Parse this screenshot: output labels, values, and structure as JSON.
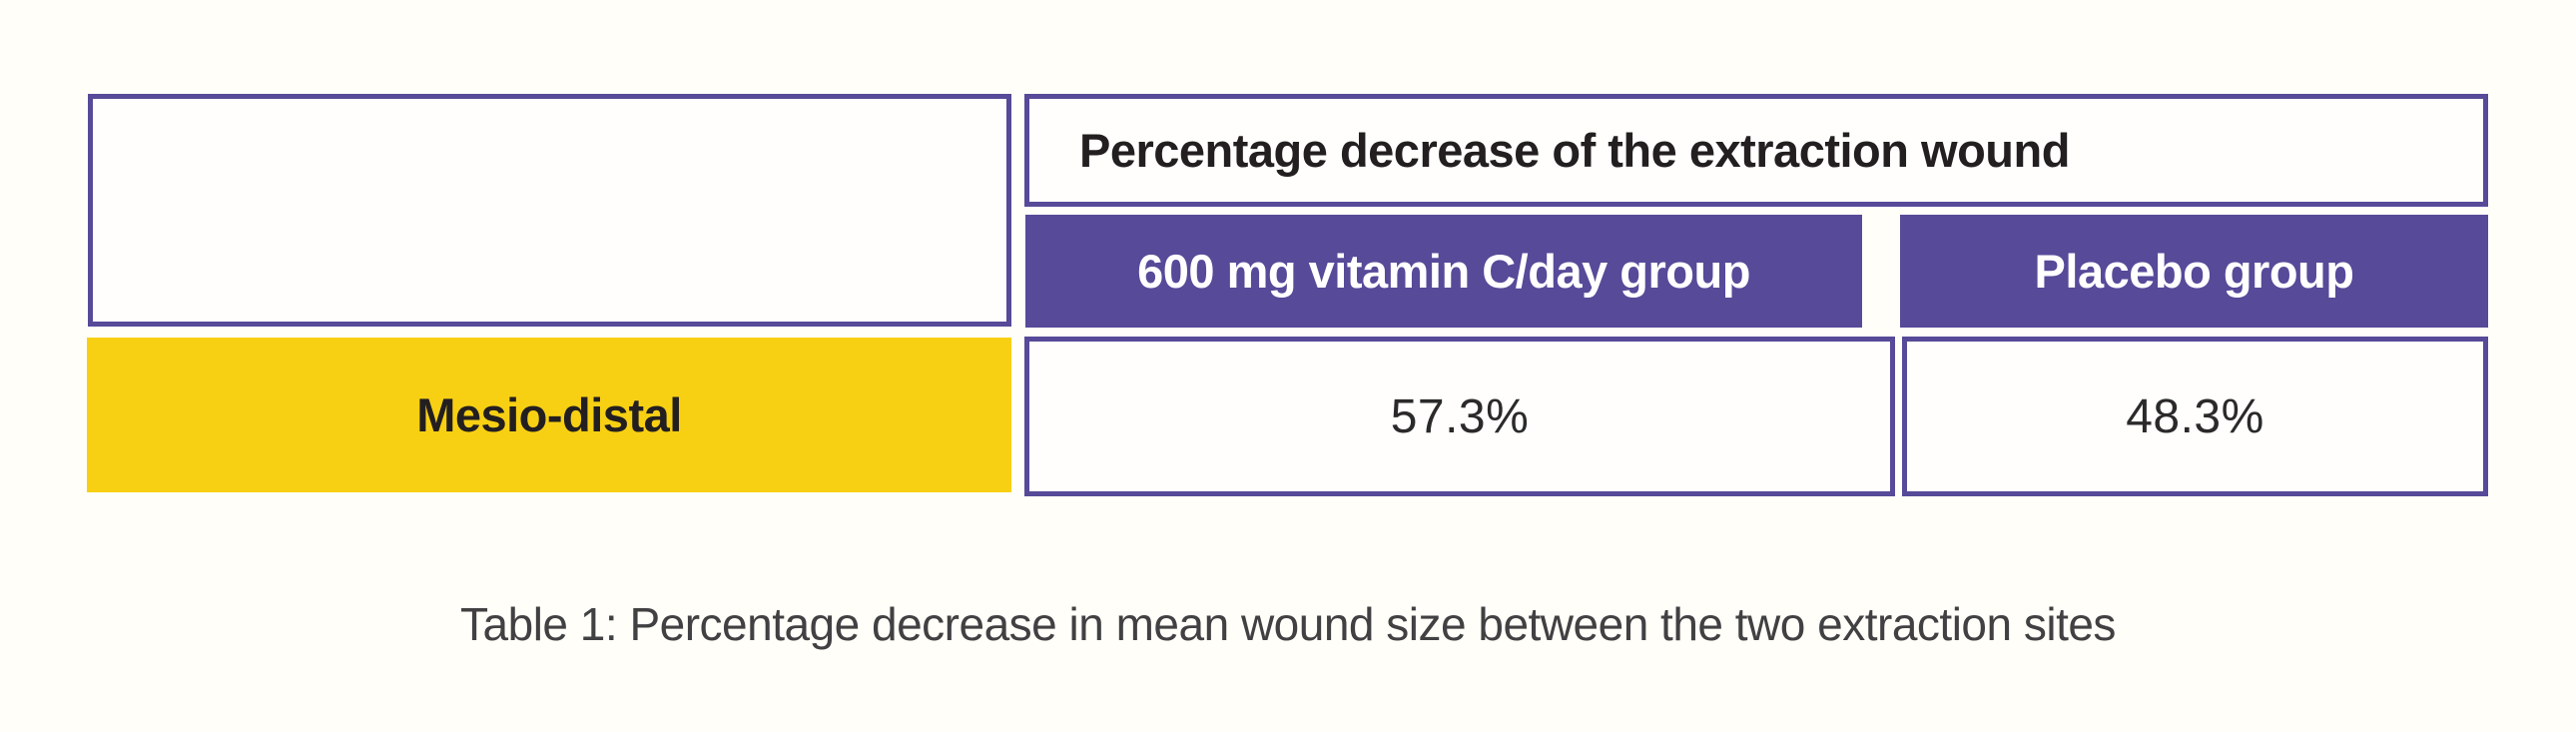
{
  "figure": {
    "caption": "Table 1: Percentage decrease in mean wound size between the two extraction sites"
  },
  "table": {
    "spanner_header": "Percentage decrease of the extraction wound",
    "column_headers": [
      "600 mg vitamin C/day group",
      "Placebo group"
    ],
    "rows": [
      {
        "label": "Mesio-distal",
        "values": [
          "57.3%",
          "48.3%"
        ]
      }
    ]
  },
  "chart_data": {
    "type": "table",
    "title": "Percentage decrease of the extraction wound",
    "caption": "Table 1: Percentage decrease in mean wound size between the two extraction sites",
    "columns": [
      "",
      "600 mg vitamin C/day group",
      "Placebo group"
    ],
    "rows": [
      [
        "Mesio-distal",
        "57.3%",
        "48.3%"
      ]
    ],
    "values_numeric": {
      "categories": [
        "Mesio-distal"
      ],
      "series": [
        {
          "name": "600 mg vitamin C/day group",
          "values": [
            57.3
          ]
        },
        {
          "name": "Placebo group",
          "values": [
            48.3
          ]
        }
      ],
      "unit": "%"
    }
  },
  "colors": {
    "purple": "#564A99",
    "yellow": "#F8D013",
    "header_text": "#231F20",
    "value_text": "#2B2A2B",
    "caption_text": "#414042",
    "background": "#FFFEF8",
    "cell_background": "#FFFEFC",
    "subheader_text": "#FFFFFF"
  }
}
